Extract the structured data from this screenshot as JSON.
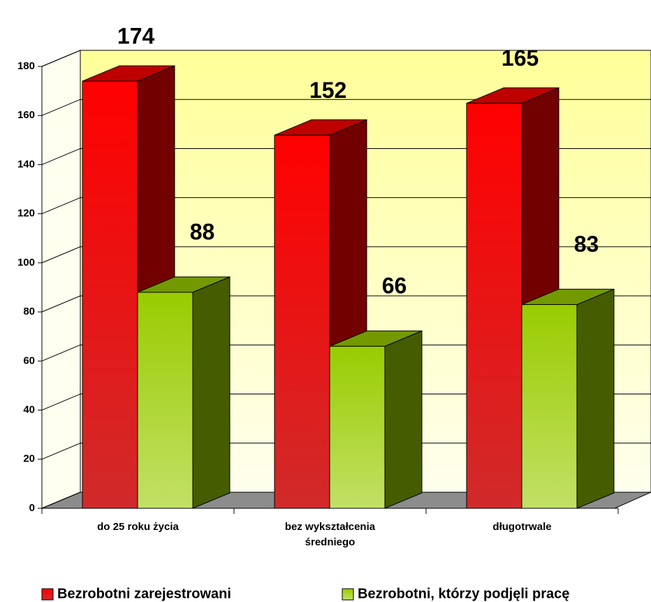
{
  "chart_data": {
    "type": "bar3d",
    "categories": [
      "do 25 roku życia",
      "bez wykształcenia średniego",
      "długotrwale"
    ],
    "series": [
      {
        "name": "Bezrobotni zarejestrowani",
        "color": "#ff0000",
        "values": [
          174,
          152,
          165
        ]
      },
      {
        "name": "Bezrobotni, którzy podjęli pracę",
        "color": "#99cc00",
        "values": [
          88,
          66,
          83
        ]
      }
    ],
    "ylim": [
      0,
      180
    ],
    "yticks": [
      0,
      20,
      40,
      60,
      80,
      100,
      120,
      140,
      160,
      180
    ],
    "grid": true,
    "legend": "bottom"
  }
}
